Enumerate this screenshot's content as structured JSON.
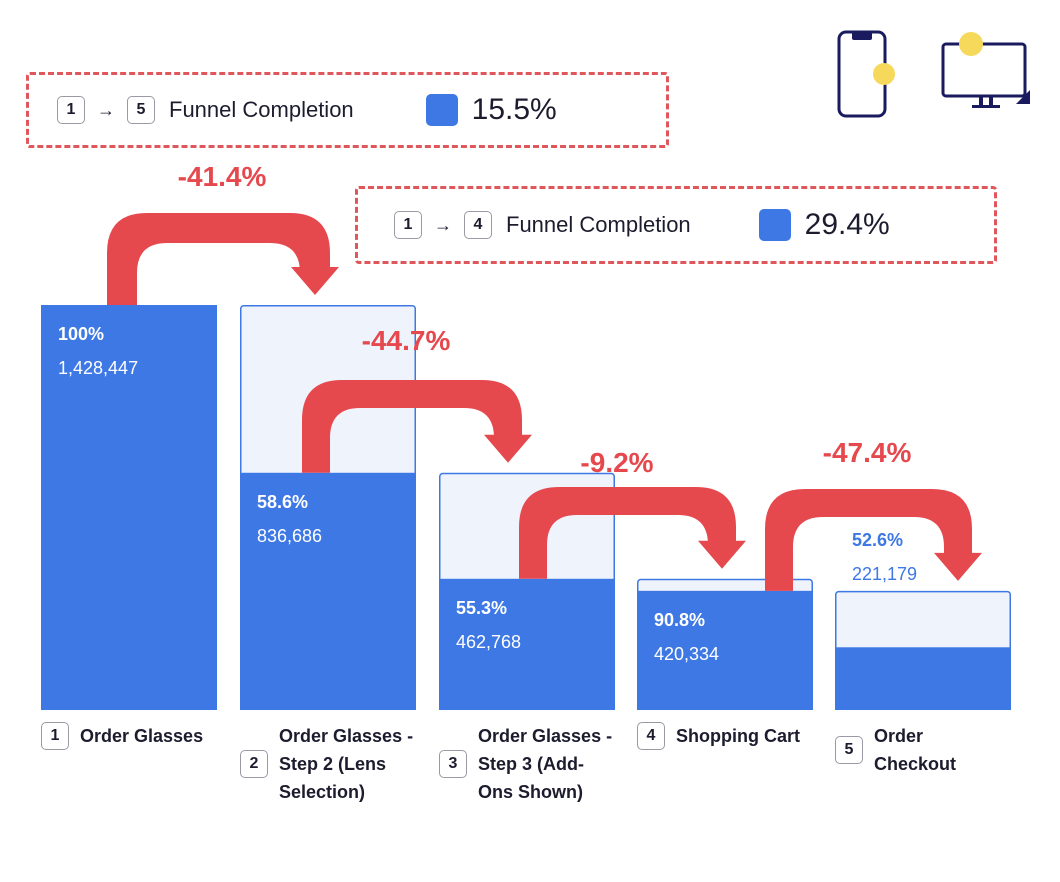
{
  "completion_boxes": [
    {
      "from": "1",
      "to": "5",
      "label": "Funnel Completion",
      "value": "15.5%"
    },
    {
      "from": "1",
      "to": "4",
      "label": "Funnel Completion",
      "value": "29.4%"
    }
  ],
  "devices": {
    "phone_icon": "mobile-phone-icon",
    "monitor_icon": "desktop-monitor-icon"
  },
  "colors": {
    "bar": "#3e78e5",
    "dropoff_fill": "#eef3fc",
    "arrow": "#e5484d",
    "accent_dot": "#f6d95a",
    "device_stroke": "#1a1a5e"
  },
  "chart_data": {
    "type": "bar",
    "title": "",
    "categories": [
      {
        "num": "1",
        "label": "Order Glasses"
      },
      {
        "num": "2",
        "label": "Order Glasses - Step 2 (Lens Selection)"
      },
      {
        "num": "3",
        "label": "Order Glasses - Step 3 (Add-Ons Shown)"
      },
      {
        "num": "4",
        "label": "Shopping Cart"
      },
      {
        "num": "5",
        "label": "Order Checkout"
      }
    ],
    "values": [
      1428447,
      836686,
      462768,
      420334,
      221179
    ],
    "value_labels": [
      "1,428,447",
      "836,686",
      "462,768",
      "420,334",
      "221,179"
    ],
    "step_conversion": [
      "100%",
      "58.6%",
      "55.3%",
      "90.8%",
      "52.6%"
    ],
    "dropoffs": [
      "-41.4%",
      "-44.7%",
      "-9.2%",
      "-47.4%"
    ],
    "ylim": [
      0,
      1428447
    ]
  }
}
